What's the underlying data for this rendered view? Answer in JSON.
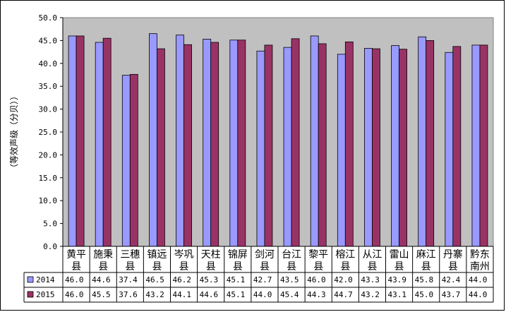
{
  "chart_data": {
    "type": "bar",
    "title": "",
    "xlabel": "",
    "ylabel": "（等效声级（分贝））",
    "ylim": [
      0,
      50
    ],
    "yticks": [
      "0.0",
      "5.0",
      "10.0",
      "15.0",
      "20.0",
      "25.0",
      "30.0",
      "35.0",
      "40.0",
      "45.0",
      "50.0"
    ],
    "grid": false,
    "legend": "bottom-left (data table)",
    "categories": [
      [
        "黄平",
        "县"
      ],
      [
        "施秉",
        "县"
      ],
      [
        "三穗",
        "县"
      ],
      [
        "镇远",
        "县"
      ],
      [
        "岑巩",
        "县"
      ],
      [
        "天柱",
        "县"
      ],
      [
        "锦屏",
        "县"
      ],
      [
        "剑河",
        "县"
      ],
      [
        "台江",
        "县"
      ],
      [
        "黎平",
        "县"
      ],
      [
        "榕江",
        "县"
      ],
      [
        "从江",
        "县"
      ],
      [
        "雷山",
        "县"
      ],
      [
        "麻江",
        "县"
      ],
      [
        "丹寨",
        "县"
      ],
      [
        "黔东",
        "南州"
      ]
    ],
    "series": [
      {
        "name": "2014",
        "color": "#9999FF",
        "values": [
          46.0,
          44.6,
          37.4,
          46.5,
          46.2,
          45.3,
          45.1,
          42.7,
          43.5,
          46.0,
          42.0,
          43.3,
          43.9,
          45.8,
          42.4,
          44.0
        ],
        "labels": [
          "46.0",
          "44.6",
          "37.4",
          "46.5",
          "46.2",
          "45.3",
          "45.1",
          "42.7",
          "43.5",
          "46.0",
          "42.0",
          "43.3",
          "43.9",
          "45.8",
          "42.4",
          "44.0"
        ]
      },
      {
        "name": "2015",
        "color": "#993366",
        "values": [
          46.0,
          45.5,
          37.6,
          43.2,
          44.1,
          44.6,
          45.1,
          44.0,
          45.4,
          44.3,
          44.7,
          43.2,
          43.1,
          45.0,
          43.7,
          44.0
        ],
        "labels": [
          "46.0",
          "45.5",
          "37.6",
          "43.2",
          "44.1",
          "44.6",
          "45.1",
          "44.0",
          "45.4",
          "44.3",
          "44.7",
          "43.2",
          "43.1",
          "45.0",
          "43.7",
          "44.0"
        ]
      }
    ],
    "plot_background": "#C0C0C0"
  }
}
